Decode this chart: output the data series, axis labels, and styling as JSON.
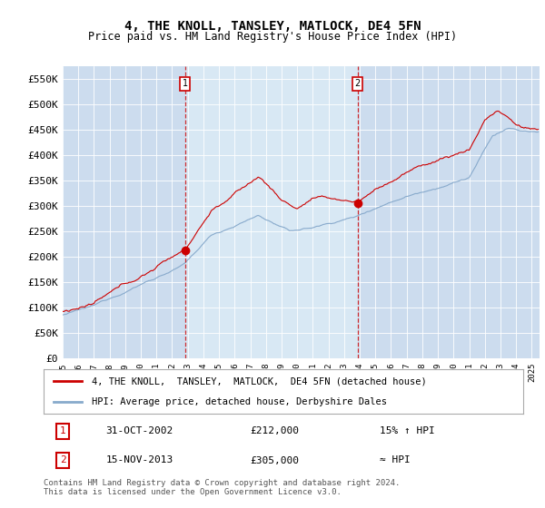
{
  "title": "4, THE KNOLL, TANSLEY, MATLOCK, DE4 5FN",
  "subtitle": "Price paid vs. HM Land Registry's House Price Index (HPI)",
  "ylim": [
    0,
    575000
  ],
  "yticks": [
    0,
    50000,
    100000,
    150000,
    200000,
    250000,
    300000,
    350000,
    400000,
    450000,
    500000,
    550000
  ],
  "ytick_labels": [
    "£0",
    "£50K",
    "£100K",
    "£150K",
    "£200K",
    "£250K",
    "£300K",
    "£350K",
    "£400K",
    "£450K",
    "£500K",
    "£550K"
  ],
  "line1_color": "#cc0000",
  "line2_color": "#88aacc",
  "marker_color": "#cc0000",
  "vline_color": "#cc0000",
  "bg_color": "#ccdcee",
  "highlight_bg": "#d8e8f4",
  "legend_line1": "4, THE KNOLL,  TANSLEY,  MATLOCK,  DE4 5FN (detached house)",
  "legend_line2": "HPI: Average price, detached house, Derbyshire Dales",
  "sale1_date": "31-OCT-2002",
  "sale1_price": "£212,000",
  "sale1_hpi": "15% ↑ HPI",
  "sale2_date": "15-NOV-2013",
  "sale2_price": "£305,000",
  "sale2_hpi": "≈ HPI",
  "footer": "Contains HM Land Registry data © Crown copyright and database right 2024.\nThis data is licensed under the Open Government Licence v3.0.",
  "sale1_x": 2002.83,
  "sale1_y": 212000,
  "sale2_x": 2013.87,
  "sale2_y": 305000,
  "xmin": 1995.0,
  "xmax": 2025.5
}
